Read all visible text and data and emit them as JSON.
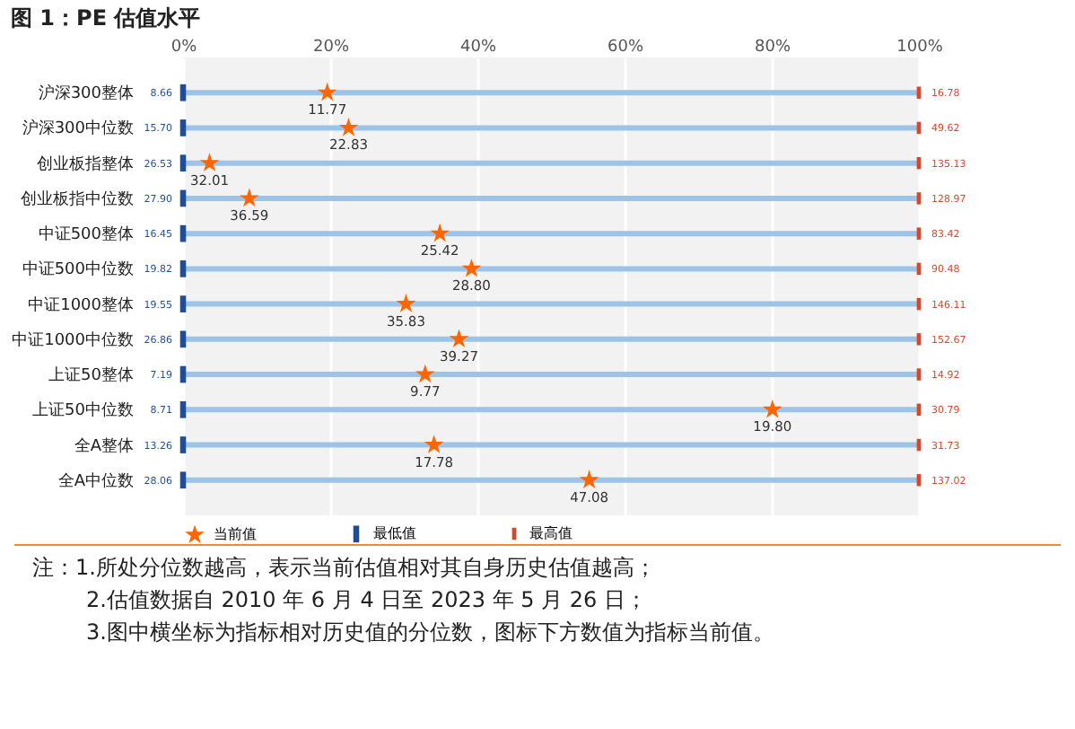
{
  "chart_data": {
    "type": "scatter",
    "title": "图 1：PE 估值水平",
    "orientation": "horizontal",
    "categories": [
      "沪深300整体",
      "沪深300中位数",
      "创业板指整体",
      "创业板指中位数",
      "中证500整体",
      "中证500中位数",
      "中证1000整体",
      "中证1000中位数",
      "上证50整体",
      "上证50中位数",
      "全A整体",
      "全A中位数"
    ],
    "xlim": [
      0,
      100
    ],
    "xticks": [
      {
        "value": 0,
        "label": "0%"
      },
      {
        "value": 20,
        "label": "20%"
      },
      {
        "value": 40,
        "label": "40%"
      },
      {
        "value": 60,
        "label": "60%"
      },
      {
        "value": 80,
        "label": "80%"
      },
      {
        "value": 100,
        "label": "100%"
      }
    ],
    "grid": "x",
    "legend": "bottom",
    "series": [
      {
        "type": "bar",
        "color": "#9dc3e6",
        "values": [
          100,
          100,
          100,
          100,
          100,
          100,
          100,
          100,
          100,
          100,
          100,
          100
        ]
      },
      {
        "name": "当前值",
        "color": "#ff6600",
        "marker": "star",
        "values": [
          19.6,
          22.5,
          3.6,
          9.0,
          34.9,
          39.2,
          30.3,
          37.5,
          32.9,
          80.1,
          34.1,
          55.2
        ]
      },
      {
        "name": "最低值",
        "color": "#1f4e99",
        "marker": "square",
        "values": [
          0,
          0,
          0,
          0,
          0,
          0,
          0,
          0,
          0,
          0,
          0,
          0
        ]
      },
      {
        "name": "最高值",
        "color": "#d9472b",
        "marker": "square",
        "values": [
          100,
          100,
          100,
          100,
          100,
          100,
          100,
          100,
          100,
          100,
          100,
          100
        ]
      }
    ],
    "annotations": [
      {
        "text": "11.77",
        "x": 19.6,
        "y": "沪深300整体"
      },
      {
        "text": "22.83",
        "x": 22.5,
        "y": "沪深300中位数"
      },
      {
        "text": "32.01",
        "x": 3.6,
        "y": "创业板指整体"
      },
      {
        "text": "36.59",
        "x": 9.0,
        "y": "创业板指中位数"
      },
      {
        "text": "25.42",
        "x": 34.9,
        "y": "中证500整体"
      },
      {
        "text": "28.80",
        "x": 39.2,
        "y": "中证500中位数"
      },
      {
        "text": "35.83",
        "x": 30.3,
        "y": "中证1000整体"
      },
      {
        "text": "39.27",
        "x": 37.5,
        "y": "中证1000中位数"
      },
      {
        "text": "9.77",
        "x": 32.9,
        "y": "上证50整体"
      },
      {
        "text": "19.80",
        "x": 80.1,
        "y": "上证50中位数"
      },
      {
        "text": "17.78",
        "x": 34.1,
        "y": "全A整体"
      },
      {
        "text": "47.08",
        "x": 55.2,
        "y": "全A中位数"
      },
      {
        "text": "8.66",
        "x": 0,
        "y": "沪深300整体"
      },
      {
        "text": "15.70",
        "x": 0,
        "y": "沪深300中位数"
      },
      {
        "text": "26.53",
        "x": 0,
        "y": "创业板指整体"
      },
      {
        "text": "27.90",
        "x": 0,
        "y": "创业板指中位数"
      },
      {
        "text": "16.45",
        "x": 0,
        "y": "中证500整体"
      },
      {
        "text": "19.82",
        "x": 0,
        "y": "中证500中位数"
      },
      {
        "text": "19.55",
        "x": 0,
        "y": "中证1000整体"
      },
      {
        "text": "26.86",
        "x": 0,
        "y": "中证1000中位数"
      },
      {
        "text": "7.19",
        "x": 0,
        "y": "上证50整体"
      },
      {
        "text": "8.71",
        "x": 0,
        "y": "上证50中位数"
      },
      {
        "text": "13.26",
        "x": 0,
        "y": "全A整体"
      },
      {
        "text": "28.06",
        "x": 0,
        "y": "全A中位数"
      },
      {
        "text": "16.78",
        "x": 100,
        "y": "沪深300整体"
      },
      {
        "text": "49.62",
        "x": 100,
        "y": "沪深300中位数"
      },
      {
        "text": "135.13",
        "x": 100,
        "y": "创业板指整体"
      },
      {
        "text": "128.97",
        "x": 100,
        "y": "创业板指中位数"
      },
      {
        "text": "83.42",
        "x": 100,
        "y": "中证500整体"
      },
      {
        "text": "90.48",
        "x": 100,
        "y": "中证500中位数"
      },
      {
        "text": "146.11",
        "x": 100,
        "y": "中证1000整体"
      },
      {
        "text": "152.67",
        "x": 100,
        "y": "中证1000中位数"
      },
      {
        "text": "14.92",
        "x": 100,
        "y": "上证50整体"
      },
      {
        "text": "30.79",
        "x": 100,
        "y": "上证50中位数"
      },
      {
        "text": "31.73",
        "x": 100,
        "y": "全A整体"
      },
      {
        "text": "137.02",
        "x": 100,
        "y": "全A中位数"
      },
      "注：1.所处分位数越高，表示当前估值相对其自身历史估值越高；",
      "2.估值数据自 2010 年 6 月 4 日至 2023 年 5 月 26 日；",
      "3.图中横坐标为指标相对历史值的分位数，图标下方数值为指标当前值。"
    ]
  }
}
